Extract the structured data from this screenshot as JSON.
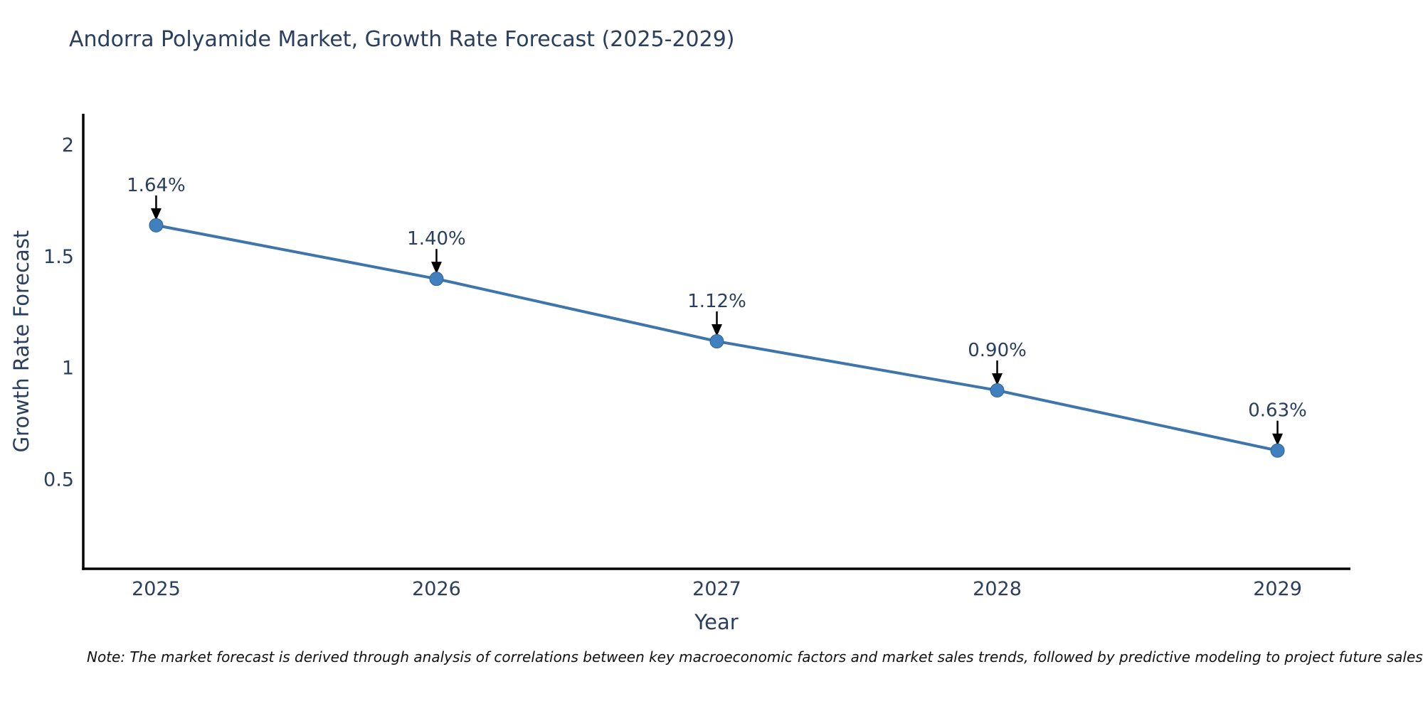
{
  "title": "Andorra Polyamide Market, Growth Rate Forecast (2025-2029)",
  "note": "Note: The market forecast is derived through analysis of correlations between key macroeconomic factors and market sales trends, followed by predictive modeling to project future sales",
  "chart_data": {
    "type": "line",
    "title": "Andorra Polyamide Market, Growth Rate Forecast (2025-2029)",
    "xlabel": "Year",
    "ylabel": "Growth Rate Forecast",
    "x": [
      2025,
      2026,
      2027,
      2028,
      2029
    ],
    "values": [
      1.64,
      1.4,
      1.12,
      0.9,
      0.63
    ],
    "point_labels": [
      "1.64%",
      "1.40%",
      "1.12%",
      "0.90%",
      "0.63%"
    ],
    "yticks": [
      0.5,
      1,
      1.5,
      2
    ],
    "ytick_labels": [
      "0.5",
      "1",
      "1.5",
      "2"
    ],
    "xlim": [
      2024.74,
      2029.26
    ],
    "ylim": [
      0.1,
      2.14
    ],
    "grid": false,
    "legend": "none",
    "colors": {
      "line": "#3e76ac",
      "marker": "#4180bf",
      "marker_edge": "#2f6496",
      "arrow": "#000000",
      "axis": "#000000",
      "text": "#2a3f5f",
      "note": "#111111"
    }
  }
}
